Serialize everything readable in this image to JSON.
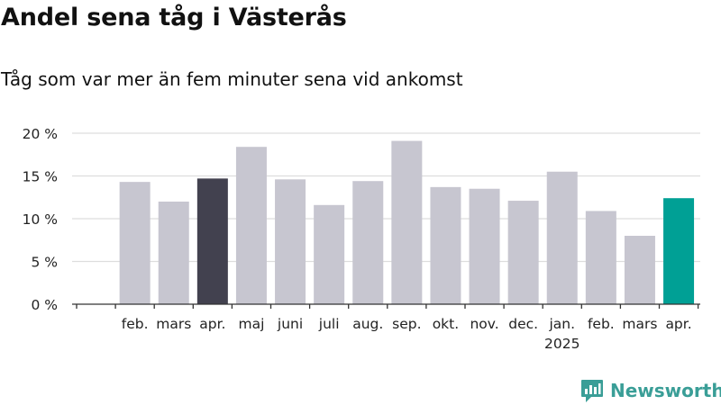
{
  "header": {
    "title": "Andel sena tåg i Västerås",
    "subtitle": "Tåg som var mer än fem minuter sena vid ankomst"
  },
  "brand": {
    "name": "Newsworthy",
    "color": "#3a9e97"
  },
  "colors": {
    "bar_default": "#c7c6d0",
    "bar_reference": "#42414f",
    "bar_current": "#00a095",
    "grid": "#dddddd",
    "axis": "#333333"
  },
  "chart_data": {
    "type": "bar",
    "title": "",
    "xlabel": "",
    "ylabel": "",
    "categories": [
      "",
      "feb.",
      "mars",
      "apr.",
      "maj",
      "juni",
      "juli",
      "aug.",
      "sep.",
      "okt.",
      "nov.",
      "dec.",
      "jan.",
      "feb.",
      "mars",
      "apr."
    ],
    "year_labels": {
      "12": "2025"
    },
    "values": [
      null,
      14.3,
      12.0,
      14.7,
      18.4,
      14.6,
      11.6,
      14.4,
      19.1,
      13.7,
      13.5,
      12.1,
      15.5,
      10.9,
      8.0,
      12.4
    ],
    "highlight": {
      "3": "reference",
      "15": "current"
    },
    "ylim": [
      0,
      20
    ],
    "yticks": [
      0,
      5,
      10,
      15,
      20
    ],
    "ytick_labels": [
      "0 %",
      "5 %",
      "10 %",
      "15 %",
      "20 %"
    ],
    "grid": true,
    "legend": "none"
  }
}
